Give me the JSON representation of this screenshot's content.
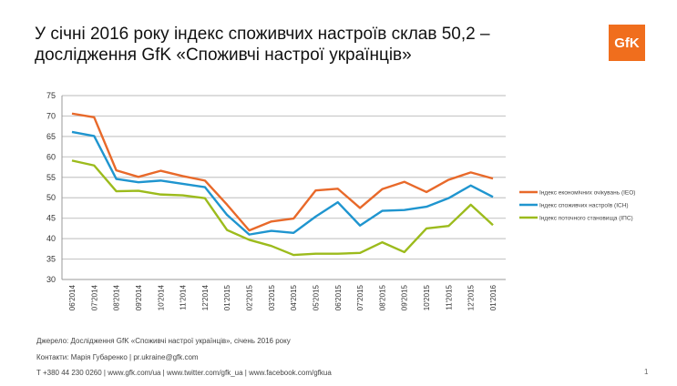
{
  "header": {
    "title_line1": "У січні 2016 року індекс споживчих настроїв склав 50,2 –",
    "title_line2": "дослідження GfK «Споживчі настрої українців»",
    "logo": "GfK"
  },
  "chart_data": {
    "type": "line",
    "categories": [
      "06'2014",
      "07'2014",
      "08'2014",
      "09'2014",
      "10'2014",
      "11'2014",
      "12'2014",
      "01'2015",
      "02'2015",
      "03'2015",
      "04'2015",
      "05'2015",
      "06'2015",
      "07'2015",
      "08'2015",
      "09'2015",
      "10'2015",
      "11'2015",
      "12'2015",
      "01'2016"
    ],
    "ylim": [
      30,
      75
    ],
    "yticks": [
      30,
      35,
      40,
      45,
      50,
      55,
      60,
      65,
      70,
      75
    ],
    "grid": true,
    "legend": "right",
    "series": [
      {
        "name": "Індекс економічних очікувань (IEO)",
        "color": "#e8692a",
        "values": [
          70.6,
          69.7,
          56.7,
          55.1,
          56.6,
          55.3,
          54.2,
          48.3,
          42.0,
          44.2,
          44.9,
          51.8,
          52.2,
          47.5,
          52.1,
          53.9,
          51.4,
          54.4,
          56.2,
          54.7
        ]
      },
      {
        "name": "Індекс споживчих настроїв (ICH)",
        "color": "#1f95cf",
        "values": [
          66.1,
          65.1,
          54.6,
          53.8,
          54.2,
          53.4,
          52.6,
          45.8,
          41.0,
          41.9,
          41.4,
          45.4,
          48.9,
          43.2,
          46.8,
          47.0,
          47.8,
          49.9,
          53.0,
          50.2
        ]
      },
      {
        "name": "Індекс поточного  становища (ІПС)",
        "color": "#9cbb1c",
        "values": [
          59.1,
          57.9,
          51.6,
          51.7,
          50.8,
          50.6,
          49.9,
          42.1,
          39.7,
          38.2,
          36.0,
          36.3,
          36.3,
          36.5,
          39.1,
          36.7,
          42.5,
          43.1,
          48.3,
          43.3
        ]
      }
    ]
  },
  "footer": {
    "source": "Джерело: Дослідження GfK «Споживчі настрої українців», січень 2016 року",
    "contacts": "Контакти: Марія Губаренко | pr.ukraine@gfk.com",
    "phone": "T +380 44 230 0260 | www.gfk.com/ua | www.twitter.com/gfk_ua | www.facebook.com/gfkua",
    "page": "1"
  }
}
